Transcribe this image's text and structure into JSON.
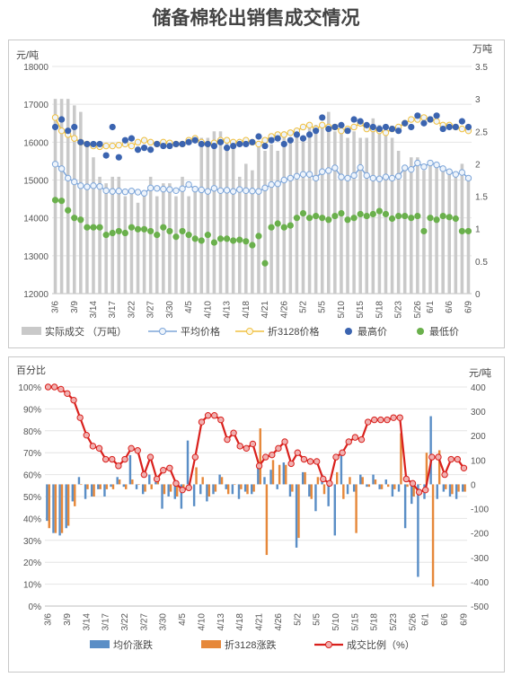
{
  "title": "储备棉轮出销售成交情况",
  "chart_data": [
    {
      "type": "combo-bar-line",
      "ylabel_left": "元/吨",
      "ylabel_right": "万吨",
      "y_left_ticks": [
        "12000",
        "13000",
        "14000",
        "15000",
        "16000",
        "17000",
        "18000"
      ],
      "y_right_ticks": [
        "0",
        "0.5",
        "1",
        "1.5",
        "2",
        "2.5",
        "3",
        "3.5"
      ],
      "ylim_left": [
        12000,
        18000
      ],
      "ylim_right": [
        0,
        3.5
      ],
      "x_ticks": [
        "3/6",
        "3/9",
        "3/14",
        "3/17",
        "3/22",
        "3/27",
        "3/30",
        "4/5",
        "4/10",
        "4/13",
        "4/18",
        "4/21",
        "4/26",
        "5/2",
        "5/5",
        "5/10",
        "5/15",
        "5/18",
        "5/23",
        "5/26",
        "6/1",
        "6/6",
        "6/9"
      ],
      "legend": [
        "实际成交 （万吨）",
        "平均价格",
        "折3128价格",
        "最高价",
        "最低价"
      ],
      "colors": {
        "bar": "#c9c9c9",
        "avg": "#7ea6d9",
        "p3128": "#f0c040",
        "high": "#3b64b0",
        "low": "#6ab04c"
      },
      "dates": [
        "3/6",
        "3/7",
        "3/8",
        "3/9",
        "3/10",
        "3/13",
        "3/14",
        "3/15",
        "3/16",
        "3/17",
        "3/20",
        "3/21",
        "3/22",
        "3/23",
        "3/24",
        "3/27",
        "3/28",
        "3/29",
        "3/30",
        "3/31",
        "4/3",
        "4/5",
        "4/6",
        "4/7",
        "4/10",
        "4/11",
        "4/12",
        "4/13",
        "4/14",
        "4/17",
        "4/18",
        "4/19",
        "4/20",
        "4/21",
        "4/24",
        "4/25",
        "4/26",
        "4/27",
        "4/28",
        "5/2",
        "5/3",
        "5/4",
        "5/5",
        "5/8",
        "5/9",
        "5/10",
        "5/11",
        "5/12",
        "5/15",
        "5/16",
        "5/17",
        "5/18",
        "5/19",
        "5/22",
        "5/23",
        "5/24",
        "5/25",
        "5/26",
        "5/31",
        "6/1",
        "6/2",
        "6/5",
        "6/6",
        "6/7",
        "6/8",
        "6/9"
      ],
      "volume": [
        3.0,
        3.0,
        3.0,
        2.9,
        2.8,
        2.3,
        2.1,
        1.8,
        1.7,
        1.8,
        1.8,
        1.5,
        1.6,
        1.4,
        1.5,
        1.8,
        1.5,
        1.7,
        1.7,
        1.5,
        1.8,
        1.5,
        1.6,
        2.4,
        2.4,
        2.5,
        2.5,
        2.4,
        2.3,
        1.8,
        2.0,
        1.9,
        2.3,
        2.2,
        2.3,
        2.2,
        2.5,
        2.4,
        2.5,
        2.4,
        2.6,
        2.6,
        2.6,
        2.8,
        2.5,
        2.6,
        2.4,
        2.5,
        2.4,
        2.4,
        2.7,
        2.6,
        2.6,
        2.4,
        2.2,
        1.9,
        2.1,
        2.1,
        1.9,
        2.0,
        2.0,
        1.9,
        1.9,
        1.8,
        2.0,
        1.8
      ],
      "avg_price": [
        15420,
        15300,
        15050,
        14950,
        14850,
        14820,
        14850,
        14830,
        14720,
        14700,
        14710,
        14690,
        14710,
        14680,
        14650,
        14790,
        14780,
        14760,
        14750,
        14720,
        14770,
        14880,
        14760,
        14740,
        14700,
        14780,
        14720,
        14730,
        14700,
        14750,
        14720,
        14710,
        14700,
        14790,
        14880,
        14900,
        15000,
        15050,
        15100,
        15150,
        15150,
        15050,
        15220,
        15250,
        15320,
        15080,
        15050,
        15120,
        15330,
        15120,
        15050,
        15030,
        15080,
        15050,
        15100,
        15320,
        15280,
        15450,
        15350,
        15450,
        15400,
        15300,
        15220,
        15150,
        15200,
        15050
      ],
      "price_3128": [
        16650,
        16300,
        16200,
        16100,
        16000,
        15950,
        15900,
        15880,
        15900,
        15900,
        15920,
        15950,
        15900,
        16000,
        16050,
        16000,
        15950,
        16000,
        15980,
        15950,
        15950,
        16050,
        16100,
        16000,
        15950,
        15980,
        16050,
        16050,
        16000,
        16000,
        16050,
        16000,
        15950,
        16050,
        16150,
        16200,
        16200,
        16250,
        16300,
        16400,
        16450,
        16350,
        16450,
        16400,
        16400,
        16300,
        16350,
        16400,
        16500,
        16350,
        16350,
        16300,
        16250,
        16350,
        16400,
        16500,
        16600,
        16600,
        16650,
        16600,
        16550,
        16450,
        16450,
        16400,
        16350,
        16300
      ],
      "high": [
        16400,
        16600,
        16300,
        16400,
        16000,
        15950,
        15950,
        15950,
        15650,
        16400,
        15600,
        16050,
        16100,
        15800,
        15850,
        15800,
        15950,
        15900,
        15900,
        15950,
        15950,
        16000,
        16050,
        15950,
        15950,
        15900,
        16000,
        15850,
        15900,
        15950,
        15950,
        16000,
        16150,
        15900,
        16050,
        16100,
        15950,
        16050,
        16200,
        16100,
        16200,
        16300,
        16650,
        16350,
        16400,
        16450,
        16300,
        16600,
        16550,
        16450,
        16400,
        16350,
        16400,
        16350,
        16300,
        16500,
        16400,
        16700,
        16500,
        16600,
        16700,
        16350,
        16400,
        16400,
        16550,
        16400
      ],
      "low": [
        14470,
        14450,
        14200,
        14000,
        13950,
        13750,
        13750,
        13750,
        13550,
        13600,
        13650,
        13600,
        13750,
        13700,
        13700,
        13650,
        13550,
        13750,
        13650,
        13500,
        13650,
        13550,
        13450,
        13400,
        13550,
        13350,
        13450,
        13450,
        13400,
        13420,
        13380,
        13280,
        13520,
        12800,
        13750,
        13850,
        13750,
        13800,
        14000,
        14120,
        14000,
        14050,
        14000,
        13950,
        14050,
        14120,
        13950,
        14000,
        14100,
        14050,
        14100,
        14180,
        14100,
        13980,
        14050,
        14050,
        14000,
        14050,
        13650,
        14000,
        13950,
        14050,
        14020,
        13980,
        13650,
        13650
      ]
    },
    {
      "type": "combo-bar-line",
      "ylabel_left": "百分比",
      "ylabel_right": "元/吨",
      "y_left_ticks": [
        "0%",
        "10%",
        "20%",
        "30%",
        "40%",
        "50%",
        "60%",
        "70%",
        "80%",
        "90%",
        "100%"
      ],
      "y_right_ticks": [
        "-500",
        "-400",
        "-300",
        "-200",
        "-100",
        "0",
        "100",
        "200",
        "300",
        "400"
      ],
      "ylim_left": [
        0,
        100
      ],
      "ylim_right": [
        -500,
        400
      ],
      "x_ticks": [
        "3/6",
        "3/9",
        "3/14",
        "3/17",
        "3/22",
        "3/27",
        "3/30",
        "4/5",
        "4/10",
        "4/13",
        "4/18",
        "4/21",
        "4/26",
        "5/2",
        "5/5",
        "5/10",
        "5/15",
        "5/18",
        "5/23",
        "5/26",
        "6/1",
        "6/6",
        "6/9"
      ],
      "legend": [
        "均价涨跌",
        "折3128涨跌",
        "成交比例（%）"
      ],
      "colors": {
        "avg_change": "#5a8ec6",
        "change_3128": "#e6883a",
        "ratio": "#d9201c",
        "ratio_marker": "#f0b0b0"
      },
      "dates": [
        "3/6",
        "3/7",
        "3/8",
        "3/9",
        "3/10",
        "3/13",
        "3/14",
        "3/15",
        "3/16",
        "3/17",
        "3/20",
        "3/21",
        "3/22",
        "3/23",
        "3/24",
        "3/27",
        "3/28",
        "3/29",
        "3/30",
        "3/31",
        "4/3",
        "4/5",
        "4/6",
        "4/7",
        "4/10",
        "4/11",
        "4/12",
        "4/13",
        "4/14",
        "4/17",
        "4/18",
        "4/19",
        "4/20",
        "4/21",
        "4/24",
        "4/25",
        "4/26",
        "4/27",
        "4/28",
        "5/2",
        "5/3",
        "5/4",
        "5/5",
        "5/8",
        "5/9",
        "5/10",
        "5/11",
        "5/12",
        "5/15",
        "5/16",
        "5/17",
        "5/18",
        "5/19",
        "5/22",
        "5/23",
        "5/24",
        "5/25",
        "5/26",
        "5/31",
        "6/1",
        "6/2",
        "6/5",
        "6/6",
        "6/7",
        "6/8",
        "6/9"
      ],
      "avg_change": [
        -150,
        -200,
        -210,
        -180,
        -70,
        30,
        -60,
        -50,
        -20,
        -50,
        -10,
        30,
        -10,
        120,
        -20,
        -40,
        40,
        10,
        -100,
        -50,
        -60,
        -100,
        180,
        -90,
        -40,
        -70,
        -40,
        40,
        -20,
        -40,
        -60,
        -30,
        -40,
        80,
        30,
        60,
        -20,
        90,
        -50,
        -260,
        50,
        -50,
        -110,
        40,
        -90,
        -210,
        130,
        -40,
        -30,
        40,
        -10,
        40,
        -20,
        20,
        -50,
        -30,
        -180,
        -80,
        -380,
        -60,
        280,
        -60,
        -30,
        -50,
        -60,
        -30
      ],
      "change_3128": [
        -180,
        -200,
        -200,
        -170,
        -90,
        0,
        -20,
        -50,
        -20,
        -20,
        -20,
        20,
        -20,
        20,
        0,
        -30,
        -20,
        30,
        -40,
        -30,
        -50,
        -20,
        0,
        70,
        30,
        -50,
        -30,
        30,
        -40,
        0,
        -20,
        -40,
        -30,
        230,
        -290,
        100,
        80,
        80,
        -30,
        -220,
        50,
        -60,
        30,
        -40,
        10,
        50,
        -60,
        30,
        -200,
        30,
        -10,
        20,
        -20,
        -10,
        -20,
        210,
        -10,
        -50,
        0,
        130,
        -420,
        140,
        -20,
        -40,
        -30,
        -30
      ],
      "ratio": [
        100,
        100,
        99,
        97,
        94,
        86,
        78,
        73,
        72,
        67,
        67,
        64,
        67,
        72,
        71,
        60,
        68,
        58,
        62,
        63,
        56,
        53,
        54,
        68,
        84,
        87,
        87,
        85,
        76,
        79,
        73,
        72,
        74,
        64,
        68,
        69,
        72,
        75,
        65,
        70,
        67,
        66,
        66,
        58,
        56,
        68,
        70,
        75,
        77,
        76,
        84,
        85,
        85,
        85,
        86,
        86,
        58,
        56,
        52,
        53,
        68,
        68,
        60,
        67,
        67,
        63
      ]
    }
  ]
}
